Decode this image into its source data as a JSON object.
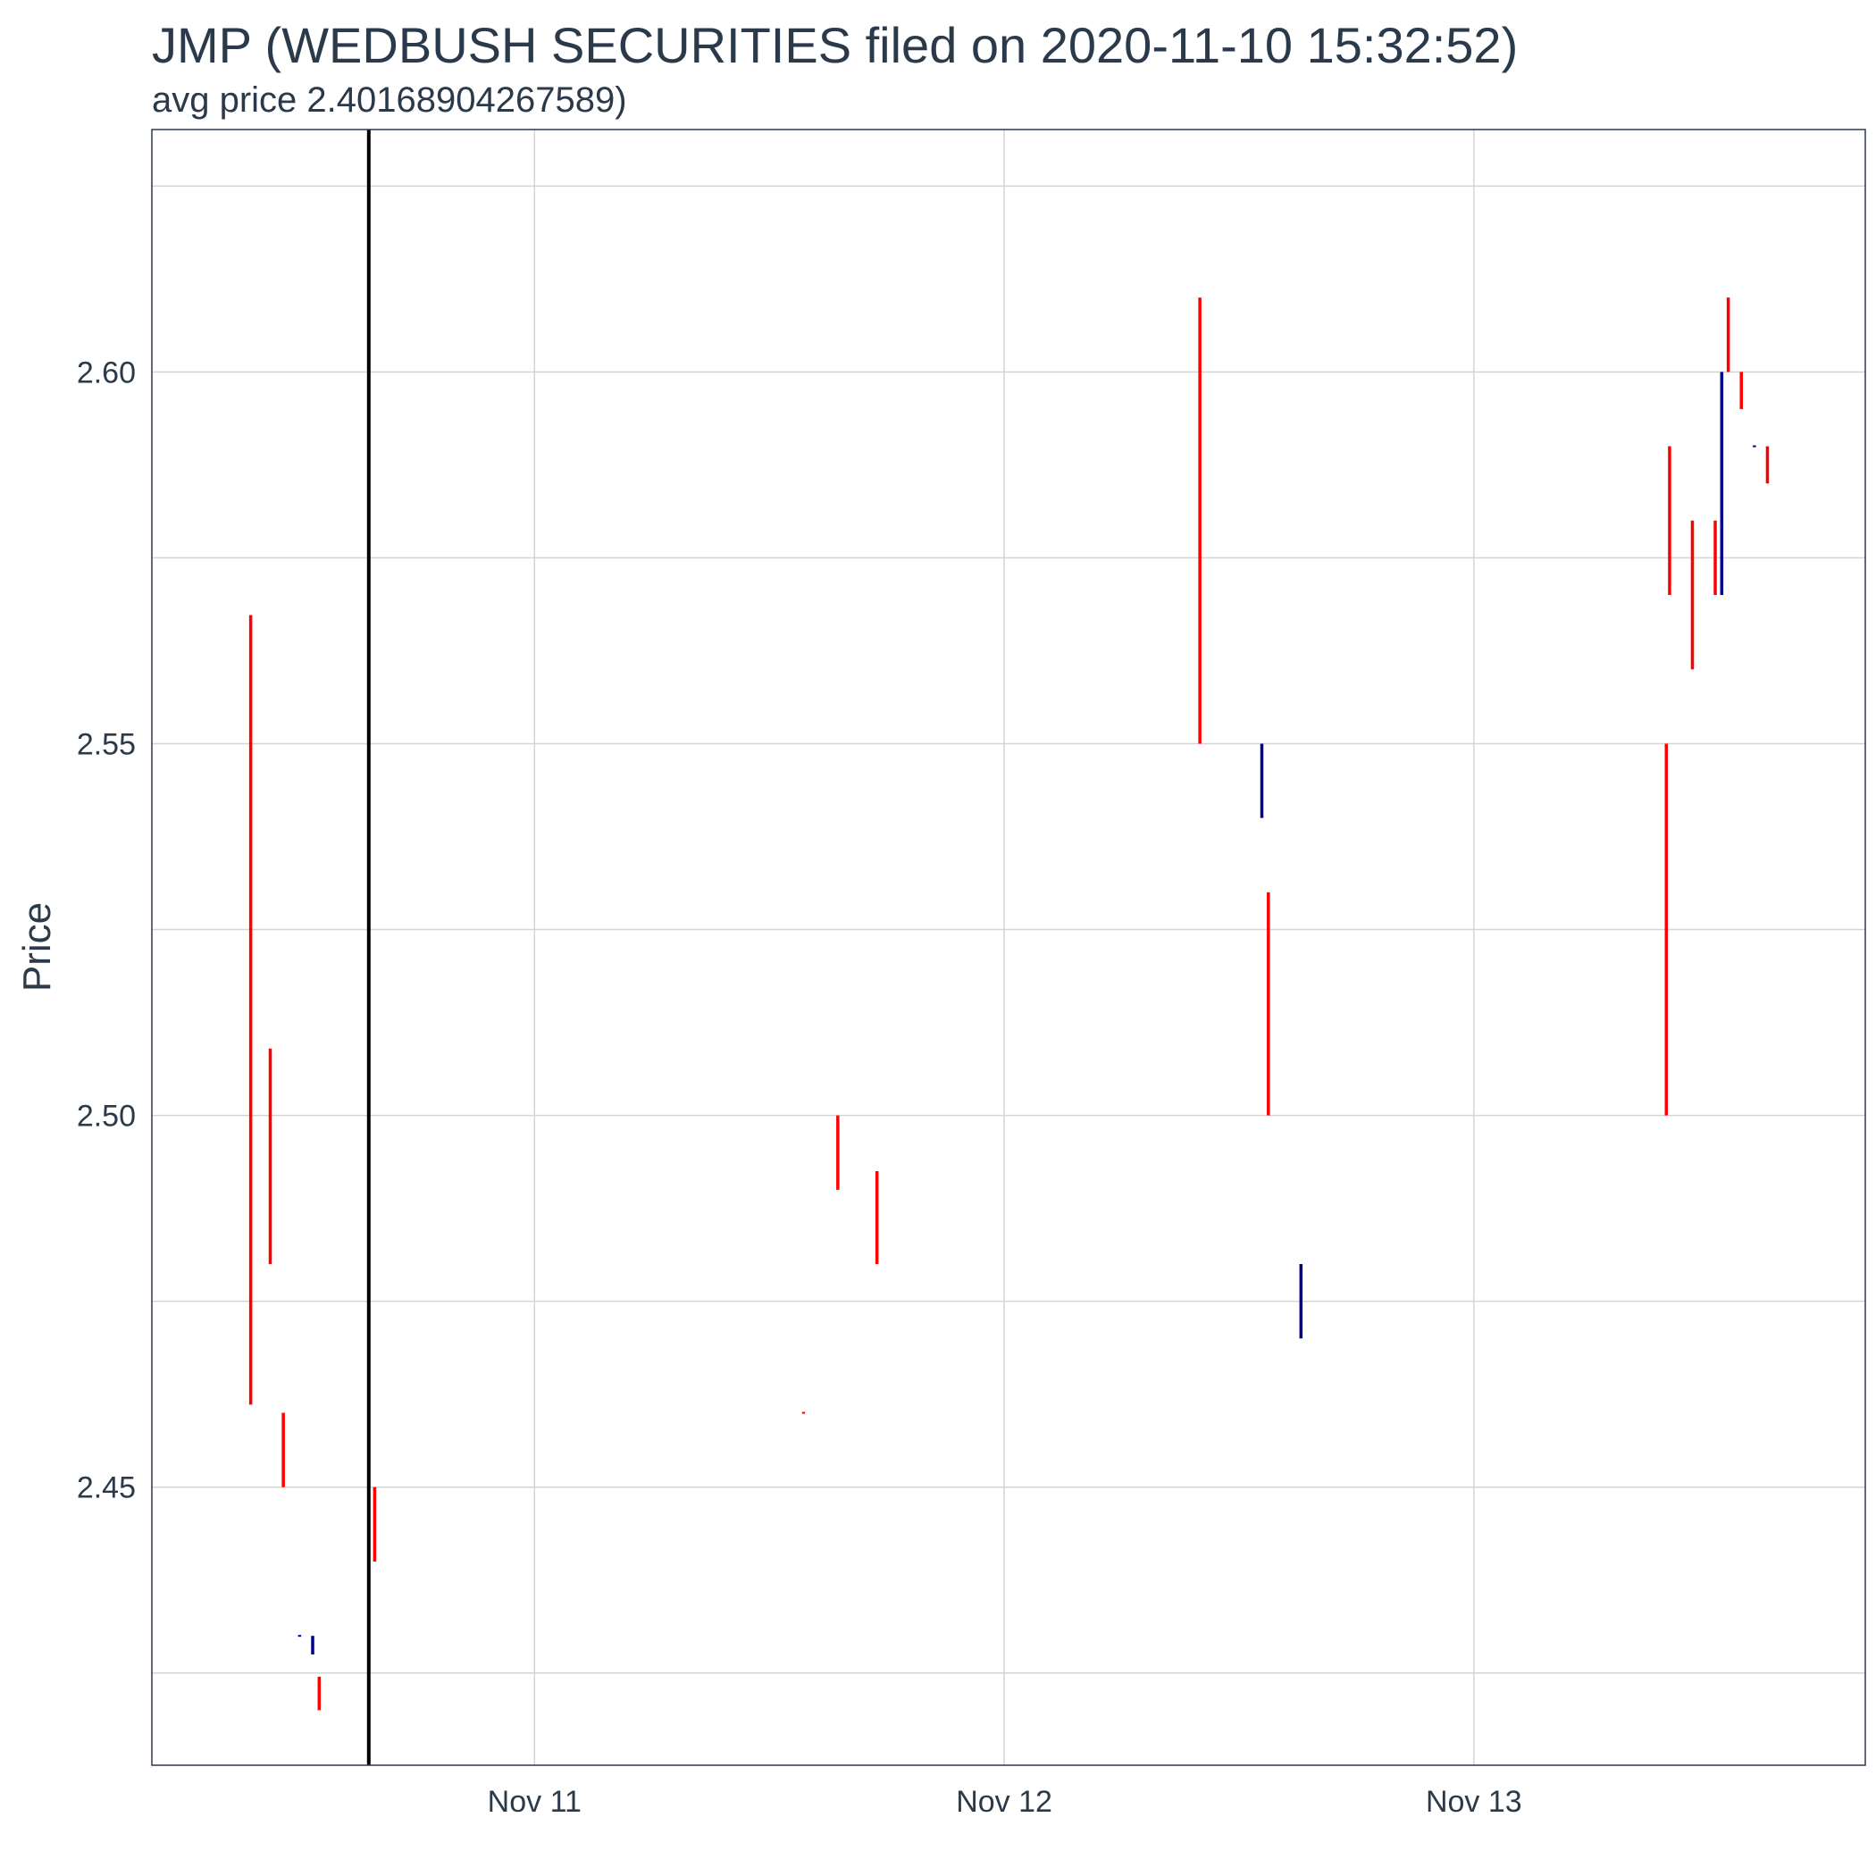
{
  "chart_data": {
    "type": "line",
    "title": "JMP (WEDBUSH SECURITIES filed on 2020-11-10 15:32:52)",
    "subtitle": "avg price 2.40168904267589)",
    "xlabel": "",
    "ylabel": "Price",
    "ylim": [
      2.4126,
      2.6326
    ],
    "xlim": [
      "2020-11-10 04:27",
      "2020-11-13 20:00"
    ],
    "grid": true,
    "legend": "none",
    "x_ticks": [
      {
        "x": "2020-11-11 00:00",
        "label": "Nov 11"
      },
      {
        "x": "2020-11-12 00:00",
        "label": "Nov 12"
      },
      {
        "x": "2020-11-13 00:00",
        "label": "Nov 13"
      }
    ],
    "y_ticks": [
      {
        "y": 2.45,
        "label": "2.45"
      },
      {
        "y": 2.5,
        "label": "2.50"
      },
      {
        "y": 2.55,
        "label": "2.55"
      },
      {
        "y": 2.6,
        "label": "2.60"
      }
    ],
    "y_minor": [
      2.425,
      2.475,
      2.525,
      2.575,
      2.625
    ],
    "filing_time": "2020-11-10 15:32:52",
    "colors": {
      "down": "#ff0000",
      "up": "#00008b",
      "filing_line": "#000000",
      "grid": "#d4d4d4",
      "text": "#2b3a4a"
    },
    "series": [
      {
        "x": "2020-11-10 09:30",
        "low": 2.4611,
        "high": 2.5673,
        "direction": "down"
      },
      {
        "x": "2020-11-10 10:30",
        "low": 2.48,
        "high": 2.509,
        "direction": "down"
      },
      {
        "x": "2020-11-10 11:10",
        "low": 2.45,
        "high": 2.46,
        "direction": "down"
      },
      {
        "x": "2020-11-10 12:00",
        "low": 2.43,
        "high": 2.43,
        "direction": "up"
      },
      {
        "x": "2020-11-10 12:40",
        "low": 2.4275,
        "high": 2.43,
        "direction": "up"
      },
      {
        "x": "2020-11-10 13:00",
        "low": 2.42,
        "high": 2.4245,
        "direction": "down"
      },
      {
        "x": "2020-11-10 15:50",
        "low": 2.44,
        "high": 2.45,
        "direction": "down"
      },
      {
        "x": "2020-11-11 13:45",
        "low": 2.46,
        "high": 2.46,
        "direction": "down"
      },
      {
        "x": "2020-11-11 15:30",
        "low": 2.49,
        "high": 2.5,
        "direction": "down"
      },
      {
        "x": "2020-11-11 17:30",
        "low": 2.48,
        "high": 2.4925,
        "direction": "down"
      },
      {
        "x": "2020-11-12 10:00",
        "low": 2.55,
        "high": 2.61,
        "direction": "down"
      },
      {
        "x": "2020-11-12 13:10",
        "low": 2.54,
        "high": 2.55,
        "direction": "up"
      },
      {
        "x": "2020-11-12 13:30",
        "low": 2.5,
        "high": 2.53,
        "direction": "down"
      },
      {
        "x": "2020-11-12 15:10",
        "low": 2.47,
        "high": 2.48,
        "direction": "up"
      },
      {
        "x": "2020-11-13 09:50",
        "low": 2.5,
        "high": 2.55,
        "direction": "down"
      },
      {
        "x": "2020-11-13 10:00",
        "low": 2.57,
        "high": 2.59,
        "direction": "down"
      },
      {
        "x": "2020-11-13 11:10",
        "low": 2.56,
        "high": 2.58,
        "direction": "down"
      },
      {
        "x": "2020-11-13 12:20",
        "low": 2.57,
        "high": 2.58,
        "direction": "down"
      },
      {
        "x": "2020-11-13 12:40",
        "low": 2.57,
        "high": 2.6,
        "direction": "up"
      },
      {
        "x": "2020-11-13 13:00",
        "low": 2.6,
        "high": 2.61,
        "direction": "down"
      },
      {
        "x": "2020-11-13 13:40",
        "low": 2.595,
        "high": 2.6,
        "direction": "down"
      },
      {
        "x": "2020-11-13 14:20",
        "low": 2.59,
        "high": 2.59,
        "direction": "up"
      },
      {
        "x": "2020-11-13 15:00",
        "low": 2.585,
        "high": 2.59,
        "direction": "down"
      }
    ]
  }
}
